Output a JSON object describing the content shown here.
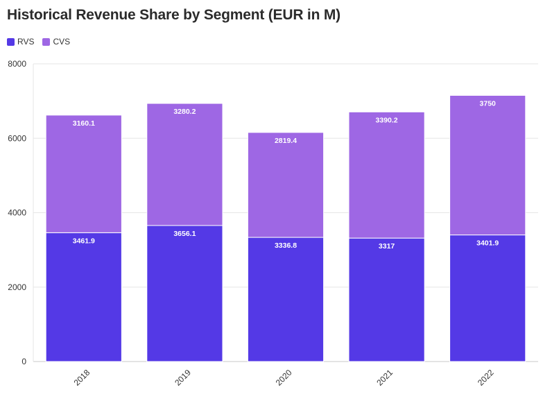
{
  "colors": {
    "rvs": "#5439e6",
    "cvs": "#9e67e4",
    "grid": "#e6e6e6",
    "axis": "#c8c8c8"
  },
  "chart_data": {
    "type": "bar",
    "stacked": true,
    "title": "Historical Revenue Share by Segment (EUR in M)",
    "xlabel": "",
    "ylabel": "",
    "categories": [
      "2018",
      "2019",
      "2020",
      "2021",
      "2022"
    ],
    "series": [
      {
        "name": "RVS",
        "values": [
          3461.9,
          3656.1,
          3336.8,
          3317,
          3401.9
        ],
        "labels": [
          "3461.9",
          "3656.1",
          "3336.8",
          "3317",
          "3401.9"
        ]
      },
      {
        "name": "CVS",
        "values": [
          3160.1,
          3280.2,
          2819.4,
          3390.2,
          3750
        ],
        "labels": [
          "3160.1",
          "3280.2",
          "2819.4",
          "3390.2",
          "3750"
        ]
      }
    ],
    "ylim": [
      0,
      8000
    ],
    "yticks": [
      0,
      2000,
      4000,
      6000,
      8000
    ],
    "ytick_labels": [
      "0",
      "2000",
      "4000",
      "6000",
      "8000"
    ],
    "grid": true,
    "legend_position": "top-left"
  }
}
